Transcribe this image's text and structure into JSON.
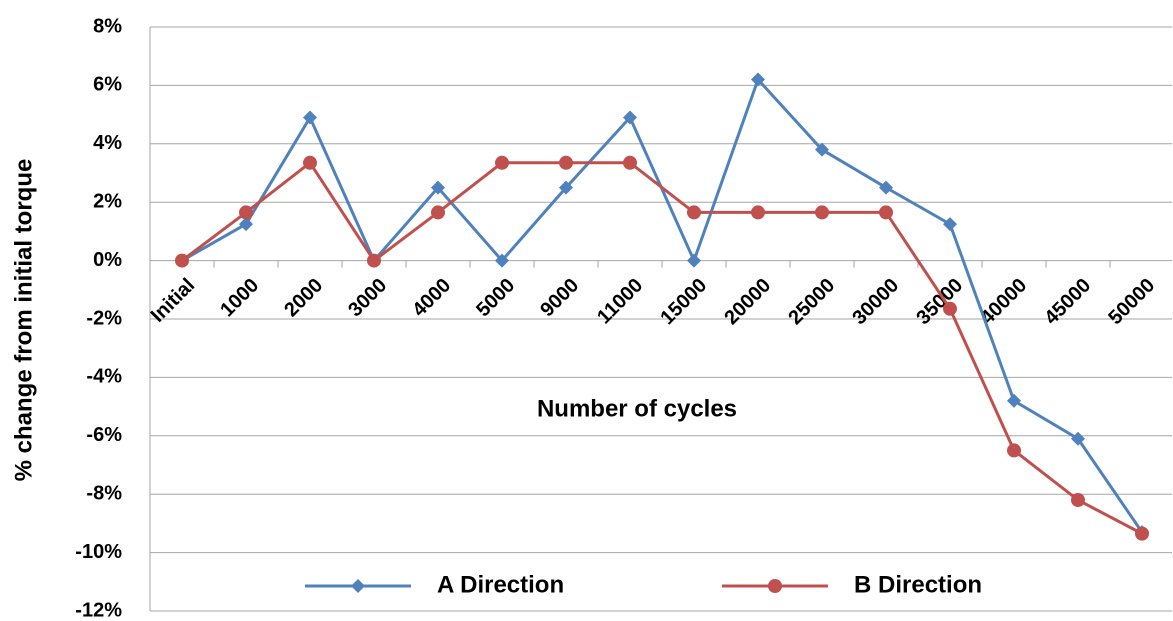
{
  "chart_data": {
    "type": "line",
    "y_label": "% change from initial torque",
    "x_label": "Number of cycles",
    "categories": [
      "Initial",
      "1000",
      "2000",
      "3000",
      "4000",
      "5000",
      "9000",
      "11000",
      "15000",
      "20000",
      "25000",
      "30000",
      "35000",
      "40000",
      "45000",
      "50000"
    ],
    "series": [
      {
        "name": "A Direction",
        "color": "#4f81bd",
        "marker": "diamond",
        "values": [
          0,
          1.25,
          4.9,
          0,
          2.5,
          0,
          2.5,
          4.9,
          0,
          6.2,
          3.8,
          2.5,
          1.25,
          -4.8,
          -6.1,
          -9.3
        ]
      },
      {
        "name": "B Direction",
        "color": "#c0504d",
        "marker": "circle",
        "values": [
          0,
          1.65,
          3.35,
          0,
          1.65,
          3.35,
          3.35,
          3.35,
          1.65,
          1.65,
          1.65,
          1.65,
          -1.65,
          -6.5,
          -8.2,
          -9.35
        ]
      }
    ],
    "ylim": [
      -12,
      8
    ],
    "yticks": [
      {
        "value": -12,
        "label": "-12%"
      },
      {
        "value": -10,
        "label": "-10%"
      },
      {
        "value": -8,
        "label": "-8%"
      },
      {
        "value": -6,
        "label": "-6%"
      },
      {
        "value": -4,
        "label": "-4%"
      },
      {
        "value": -2,
        "label": "-2%"
      },
      {
        "value": 0,
        "label": "0%"
      },
      {
        "value": 2,
        "label": "2%"
      },
      {
        "value": 4,
        "label": "4%"
      },
      {
        "value": 6,
        "label": "6%"
      },
      {
        "value": 8,
        "label": "8%"
      }
    ],
    "grid": true,
    "legend": "bottom"
  }
}
